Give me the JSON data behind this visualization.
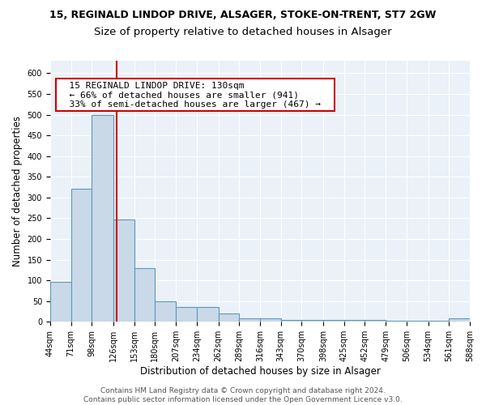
{
  "title_line1": "15, REGINALD LINDOP DRIVE, ALSAGER, STOKE-ON-TRENT, ST7 2GW",
  "title_line2": "Size of property relative to detached houses in Alsager",
  "xlabel": "Distribution of detached houses by size in Alsager",
  "ylabel": "Number of detached properties",
  "bin_edges": [
    44,
    71,
    98,
    126,
    153,
    180,
    207,
    234,
    262,
    289,
    316,
    343,
    370,
    398,
    425,
    452,
    479,
    506,
    534,
    561,
    588
  ],
  "bar_heights": [
    97,
    322,
    500,
    247,
    130,
    50,
    35,
    35,
    20,
    8,
    8,
    5,
    5,
    5,
    5,
    5,
    3,
    3,
    3,
    8
  ],
  "bar_color": "#c9d9e8",
  "bar_edge_color": "#5a9abf",
  "bar_edge_width": 0.8,
  "red_line_x": 130,
  "red_line_color": "#cc0000",
  "annotation_text": "  15 REGINALD LINDOP DRIVE: 130sqm  \n  ← 66% of detached houses are smaller (941)  \n  33% of semi-detached houses are larger (467) →  ",
  "annotation_bbox_color": "white",
  "annotation_bbox_edge": "#cc0000",
  "ylim": [
    0,
    630
  ],
  "yticks": [
    0,
    50,
    100,
    150,
    200,
    250,
    300,
    350,
    400,
    450,
    500,
    550,
    600
  ],
  "tick_labels": [
    "44sqm",
    "71sqm",
    "98sqm",
    "126sqm",
    "153sqm",
    "180sqm",
    "207sqm",
    "234sqm",
    "262sqm",
    "289sqm",
    "316sqm",
    "343sqm",
    "370sqm",
    "398sqm",
    "425sqm",
    "452sqm",
    "479sqm",
    "506sqm",
    "534sqm",
    "561sqm",
    "588sqm"
  ],
  "footer_text": "Contains HM Land Registry data © Crown copyright and database right 2024.\nContains public sector information licensed under the Open Government Licence v3.0.",
  "bg_color": "#eaf1f8",
  "grid_color": "white",
  "title_fontsize": 9,
  "subtitle_fontsize": 9.5,
  "axis_label_fontsize": 8.5,
  "tick_fontsize": 7,
  "annotation_fontsize": 8,
  "footer_fontsize": 6.5,
  "figsize": [
    6.0,
    5.0
  ],
  "dpi": 100
}
